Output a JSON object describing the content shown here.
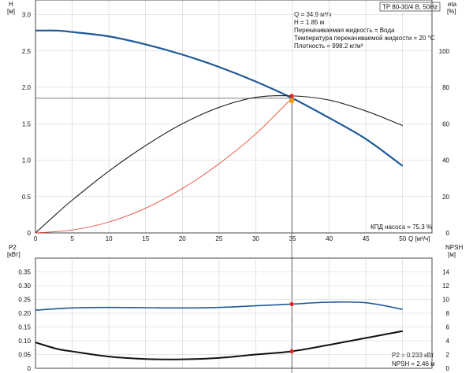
{
  "chart_data": [
    {
      "type": "line",
      "name": "top-panel",
      "title": "TP 80-30/4 B, 50Hz",
      "xlabel": "Q [м³/ч]",
      "ylabel_left": [
        "H",
        "[м]"
      ],
      "ylabel_right": [
        "eta",
        "[%]"
      ],
      "xlim": [
        0,
        54
      ],
      "ylim_left": [
        0,
        3.2
      ],
      "ylim_right": [
        0,
        128
      ],
      "x_ticks": [
        "0",
        "5",
        "10",
        "15",
        "20",
        "25",
        "30",
        "35",
        "40",
        "45",
        "50"
      ],
      "y_ticks_left": [
        "0",
        "0.5",
        "1.0",
        "1.5",
        "2.0",
        "2.5",
        "3.0"
      ],
      "y_ticks_right": [
        "0",
        "20",
        "40",
        "60",
        "80",
        "100"
      ],
      "grid": true,
      "series": [
        {
          "id": "H",
          "axis": "left",
          "color": "#1f5a99",
          "x": [
            0,
            3,
            5,
            10,
            15,
            20,
            25,
            30,
            35,
            40,
            45,
            50
          ],
          "y": [
            2.78,
            2.78,
            2.76,
            2.7,
            2.59,
            2.45,
            2.28,
            2.08,
            1.85,
            1.58,
            1.29,
            0.92
          ]
        },
        {
          "id": "eta",
          "axis": "right",
          "color": "#222222",
          "x": [
            0,
            3,
            5,
            10,
            15,
            20,
            25,
            30,
            35,
            40,
            45,
            50
          ],
          "y": [
            0,
            11,
            18,
            34,
            48,
            60,
            69,
            74.5,
            75.3,
            73,
            67,
            59
          ]
        },
        {
          "id": "system",
          "axis": "left",
          "color": "#e8483a",
          "x": [
            0,
            5,
            10,
            15,
            20,
            25,
            30,
            34.9
          ],
          "y": [
            0,
            0.04,
            0.15,
            0.34,
            0.61,
            0.95,
            1.36,
            1.85
          ]
        }
      ],
      "operating_point": {
        "x": 34.9,
        "y_left": 1.85,
        "y_right": 75.3,
        "marker_color": "#f39c12"
      },
      "info_lines": [
        "Q = 34.9 м³/ч",
        "H = 1.85 м",
        "Перекачиваемая жидкость = Вода",
        "Температура перекачиваемой жидкости = 20 °C",
        "Плотность = 998.2 кг/м³"
      ],
      "efficiency_label": "КПД насоса = 75.3 %"
    },
    {
      "type": "line",
      "name": "bottom-panel",
      "ylabel_left": [
        "P2",
        "[кВт]"
      ],
      "ylabel_right": [
        "NPSH",
        "[м]"
      ],
      "xlim": [
        0,
        54
      ],
      "ylim_left": [
        0,
        0.4
      ],
      "ylim_right": [
        0,
        16
      ],
      "y_ticks_left": [
        "0",
        "0.05",
        "0.10",
        "0.15",
        "0.20",
        "0.25",
        "0.30",
        "0.35"
      ],
      "y_ticks_right": [
        "0",
        "2",
        "4",
        "6",
        "8",
        "10",
        "12",
        "14"
      ],
      "grid": true,
      "series": [
        {
          "id": "P2",
          "axis": "left",
          "color": "#1f5a99",
          "x": [
            0,
            5,
            10,
            15,
            20,
            25,
            30,
            34.9,
            40,
            45,
            50
          ],
          "y": [
            0.211,
            0.219,
            0.221,
            0.22,
            0.219,
            0.221,
            0.227,
            0.233,
            0.24,
            0.238,
            0.214
          ]
        },
        {
          "id": "NPSH",
          "axis": "right",
          "color": "#111111",
          "x": [
            0,
            3,
            5,
            10,
            15,
            20,
            25,
            30,
            34.9,
            40,
            45,
            50
          ],
          "y": [
            3.75,
            2.8,
            2.45,
            1.7,
            1.35,
            1.3,
            1.5,
            2.0,
            2.46,
            3.4,
            4.4,
            5.4
          ]
        }
      ],
      "operating_point": {
        "x": 34.9,
        "p2": 0.233,
        "npsh": 2.46,
        "marker_color": "#e81f1f"
      },
      "readouts": [
        "P2 = 0.233 кВт",
        "NPSH = 2.46 м"
      ]
    }
  ]
}
